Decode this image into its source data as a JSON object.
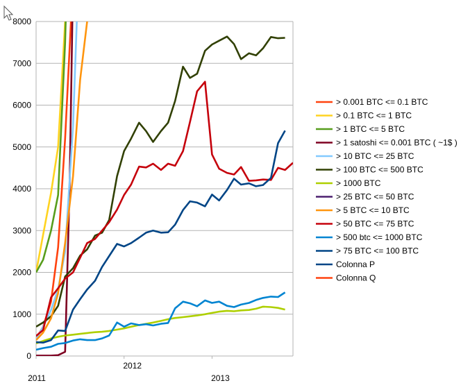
{
  "cursor_icon": "mouse-pointer-icon",
  "chart_data": {
    "type": "line",
    "title": "",
    "xlabel": "",
    "ylabel": "",
    "ylim": [
      0,
      8000
    ],
    "y_ticks": [
      0,
      1000,
      2000,
      3000,
      4000,
      5000,
      6000,
      7000,
      8000
    ],
    "x_range": [
      2011.0,
      2013.92
    ],
    "x_ticks": [
      {
        "value": 2011.0,
        "label": "2011"
      },
      {
        "value": 2012.0,
        "label": "2012"
      },
      {
        "value": 2013.0,
        "label": "2013"
      }
    ],
    "grid": true,
    "legend_position": "right",
    "series": [
      {
        "name": "> 0.001 BTC <= 0.1 BTC",
        "color": "#ff420e",
        "points": [
          [
            2011.0,
            420
          ],
          [
            2011.08,
            700
          ],
          [
            2011.17,
            1300
          ],
          [
            2011.25,
            2600
          ],
          [
            2011.33,
            5200
          ],
          [
            2011.42,
            9000
          ]
        ]
      },
      {
        "name": "> 0.1 BTC <= 1 BTC",
        "color": "#ffd320",
        "points": [
          [
            2011.0,
            2000
          ],
          [
            2011.08,
            2900
          ],
          [
            2011.17,
            3900
          ],
          [
            2011.25,
            5000
          ],
          [
            2011.33,
            8000
          ],
          [
            2011.37,
            9000
          ]
        ]
      },
      {
        "name": "> 1 BTC <= 5 BTC",
        "color": "#579d1c",
        "points": [
          [
            2011.0,
            2000
          ],
          [
            2011.08,
            2300
          ],
          [
            2011.17,
            3000
          ],
          [
            2011.25,
            3850
          ],
          [
            2011.33,
            7500
          ],
          [
            2011.35,
            9000
          ]
        ]
      },
      {
        "name": "> 1 satoshi <= 0.001 BTC ( ~1$ )",
        "color": "#7e0021",
        "points": [
          [
            2011.0,
            10
          ],
          [
            2011.08,
            10
          ],
          [
            2011.17,
            10
          ],
          [
            2011.25,
            20
          ],
          [
            2011.33,
            100
          ],
          [
            2011.38,
            4000
          ],
          [
            2011.42,
            9000
          ]
        ]
      },
      {
        "name": "> 10 BTC <= 25 BTC",
        "color": "#83caff",
        "points": [
          [
            2011.0,
            400
          ],
          [
            2011.08,
            700
          ],
          [
            2011.17,
            1100
          ],
          [
            2011.25,
            1600
          ],
          [
            2011.33,
            2500
          ],
          [
            2011.42,
            5500
          ],
          [
            2011.48,
            9000
          ]
        ]
      },
      {
        "name": "> 100 BTC <= 500 BTC",
        "color": "#314004",
        "points": [
          [
            2011.0,
            700
          ],
          [
            2011.08,
            800
          ],
          [
            2011.17,
            950
          ],
          [
            2011.25,
            1200
          ],
          [
            2011.33,
            1900
          ],
          [
            2011.42,
            2100
          ],
          [
            2011.5,
            2400
          ],
          [
            2011.58,
            2550
          ],
          [
            2011.67,
            2880
          ],
          [
            2011.75,
            2950
          ],
          [
            2011.83,
            3250
          ],
          [
            2011.92,
            4300
          ],
          [
            2012.0,
            4900
          ],
          [
            2012.08,
            5200
          ],
          [
            2012.17,
            5580
          ],
          [
            2012.25,
            5380
          ],
          [
            2012.33,
            5120
          ],
          [
            2012.42,
            5380
          ],
          [
            2012.5,
            5580
          ],
          [
            2012.58,
            6100
          ],
          [
            2012.67,
            6920
          ],
          [
            2012.75,
            6650
          ],
          [
            2012.83,
            6750
          ],
          [
            2012.92,
            7300
          ],
          [
            2013.0,
            7450
          ],
          [
            2013.08,
            7540
          ],
          [
            2013.17,
            7640
          ],
          [
            2013.25,
            7460
          ],
          [
            2013.33,
            7100
          ],
          [
            2013.42,
            7240
          ],
          [
            2013.5,
            7190
          ],
          [
            2013.58,
            7360
          ],
          [
            2013.67,
            7630
          ],
          [
            2013.75,
            7600
          ],
          [
            2013.83,
            7610
          ]
        ]
      },
      {
        "name": "> 1000 BTC",
        "color": "#aecf00",
        "points": [
          [
            2011.0,
            300
          ],
          [
            2011.08,
            360
          ],
          [
            2011.17,
            420
          ],
          [
            2011.25,
            460
          ],
          [
            2011.33,
            490
          ],
          [
            2011.42,
            510
          ],
          [
            2011.5,
            530
          ],
          [
            2011.58,
            550
          ],
          [
            2011.67,
            570
          ],
          [
            2011.75,
            580
          ],
          [
            2011.83,
            600
          ],
          [
            2011.92,
            630
          ],
          [
            2012.0,
            660
          ],
          [
            2012.08,
            700
          ],
          [
            2012.17,
            740
          ],
          [
            2012.25,
            770
          ],
          [
            2012.33,
            800
          ],
          [
            2012.42,
            840
          ],
          [
            2012.5,
            880
          ],
          [
            2012.58,
            910
          ],
          [
            2012.67,
            930
          ],
          [
            2012.75,
            950
          ],
          [
            2012.83,
            970
          ],
          [
            2012.92,
            1000
          ],
          [
            2013.0,
            1030
          ],
          [
            2013.08,
            1060
          ],
          [
            2013.17,
            1080
          ],
          [
            2013.25,
            1070
          ],
          [
            2013.33,
            1090
          ],
          [
            2013.42,
            1100
          ],
          [
            2013.5,
            1130
          ],
          [
            2013.58,
            1180
          ],
          [
            2013.67,
            1170
          ],
          [
            2013.75,
            1150
          ],
          [
            2013.83,
            1110
          ]
        ]
      },
      {
        "name": "> 25 BTC <= 50 BTC",
        "color": "#4b1f6f",
        "points": []
      },
      {
        "name": "> 5 BTC <= 10 BTC",
        "color": "#ff950e",
        "points": [
          [
            2011.0,
            380
          ],
          [
            2011.08,
            560
          ],
          [
            2011.17,
            900
          ],
          [
            2011.25,
            1500
          ],
          [
            2011.33,
            2700
          ],
          [
            2011.42,
            4300
          ],
          [
            2011.5,
            6600
          ],
          [
            2011.58,
            8000
          ],
          [
            2011.6,
            9000
          ]
        ]
      },
      {
        "name": "> 50 BTC <= 75 BTC",
        "color": "#c5000b",
        "points": [
          [
            2011.0,
            480
          ],
          [
            2011.08,
            620
          ],
          [
            2011.17,
            1400
          ],
          [
            2011.25,
            1620
          ],
          [
            2011.33,
            1850
          ],
          [
            2011.42,
            2000
          ],
          [
            2011.5,
            2350
          ],
          [
            2011.58,
            2700
          ],
          [
            2011.67,
            2800
          ],
          [
            2011.75,
            3000
          ],
          [
            2011.83,
            3200
          ],
          [
            2011.92,
            3500
          ],
          [
            2012.0,
            3850
          ],
          [
            2012.08,
            4100
          ],
          [
            2012.17,
            4530
          ],
          [
            2012.25,
            4510
          ],
          [
            2012.33,
            4600
          ],
          [
            2012.42,
            4450
          ],
          [
            2012.5,
            4600
          ],
          [
            2012.58,
            4550
          ],
          [
            2012.67,
            4900
          ],
          [
            2012.75,
            5600
          ],
          [
            2012.83,
            6330
          ],
          [
            2012.92,
            6560
          ],
          [
            2013.0,
            4820
          ],
          [
            2013.08,
            4480
          ],
          [
            2013.17,
            4380
          ],
          [
            2013.25,
            4340
          ],
          [
            2013.33,
            4520
          ],
          [
            2013.42,
            4190
          ],
          [
            2013.5,
            4200
          ],
          [
            2013.58,
            4220
          ],
          [
            2013.67,
            4210
          ],
          [
            2013.75,
            4500
          ],
          [
            2013.83,
            4450
          ],
          [
            2013.92,
            4620
          ]
        ]
      },
      {
        "name": "> 500 btc <= 1000 BTC",
        "color": "#0084d1",
        "points": [
          [
            2011.0,
            150
          ],
          [
            2011.08,
            190
          ],
          [
            2011.17,
            220
          ],
          [
            2011.25,
            290
          ],
          [
            2011.33,
            310
          ],
          [
            2011.42,
            370
          ],
          [
            2011.5,
            400
          ],
          [
            2011.58,
            380
          ],
          [
            2011.67,
            380
          ],
          [
            2011.75,
            420
          ],
          [
            2011.83,
            490
          ],
          [
            2011.92,
            800
          ],
          [
            2012.0,
            700
          ],
          [
            2012.08,
            780
          ],
          [
            2012.17,
            740
          ],
          [
            2012.25,
            760
          ],
          [
            2012.33,
            730
          ],
          [
            2012.42,
            770
          ],
          [
            2012.5,
            790
          ],
          [
            2012.58,
            1140
          ],
          [
            2012.67,
            1300
          ],
          [
            2012.75,
            1260
          ],
          [
            2012.83,
            1190
          ],
          [
            2012.92,
            1330
          ],
          [
            2013.0,
            1270
          ],
          [
            2013.08,
            1300
          ],
          [
            2013.17,
            1200
          ],
          [
            2013.25,
            1170
          ],
          [
            2013.33,
            1230
          ],
          [
            2013.42,
            1270
          ],
          [
            2013.5,
            1340
          ],
          [
            2013.58,
            1390
          ],
          [
            2013.67,
            1420
          ],
          [
            2013.75,
            1410
          ],
          [
            2013.83,
            1520
          ]
        ]
      },
      {
        "name": "> 75 BTC <= 100 BTC",
        "color": "#004586",
        "points": [
          [
            2011.0,
            330
          ],
          [
            2011.08,
            320
          ],
          [
            2011.17,
            380
          ],
          [
            2011.25,
            610
          ],
          [
            2011.33,
            600
          ],
          [
            2011.42,
            1110
          ],
          [
            2011.5,
            1360
          ],
          [
            2011.58,
            1590
          ],
          [
            2011.67,
            1800
          ],
          [
            2011.75,
            2130
          ],
          [
            2011.83,
            2390
          ],
          [
            2011.92,
            2680
          ],
          [
            2012.0,
            2620
          ],
          [
            2012.08,
            2700
          ],
          [
            2012.17,
            2830
          ],
          [
            2012.25,
            2950
          ],
          [
            2012.33,
            3000
          ],
          [
            2012.42,
            2950
          ],
          [
            2012.5,
            2960
          ],
          [
            2012.58,
            3140
          ],
          [
            2012.67,
            3490
          ],
          [
            2012.75,
            3700
          ],
          [
            2012.83,
            3670
          ],
          [
            2012.92,
            3580
          ],
          [
            2013.0,
            3860
          ],
          [
            2013.08,
            3720
          ],
          [
            2013.17,
            3970
          ],
          [
            2013.25,
            4240
          ],
          [
            2013.33,
            4100
          ],
          [
            2013.42,
            4130
          ],
          [
            2013.5,
            4060
          ],
          [
            2013.58,
            4090
          ],
          [
            2013.67,
            4260
          ],
          [
            2013.75,
            5090
          ],
          [
            2013.83,
            5390
          ]
        ]
      },
      {
        "name": "Colonna P",
        "color": "#004586",
        "points": []
      },
      {
        "name": "Colonna Q",
        "color": "#ff420e",
        "points": []
      }
    ]
  }
}
